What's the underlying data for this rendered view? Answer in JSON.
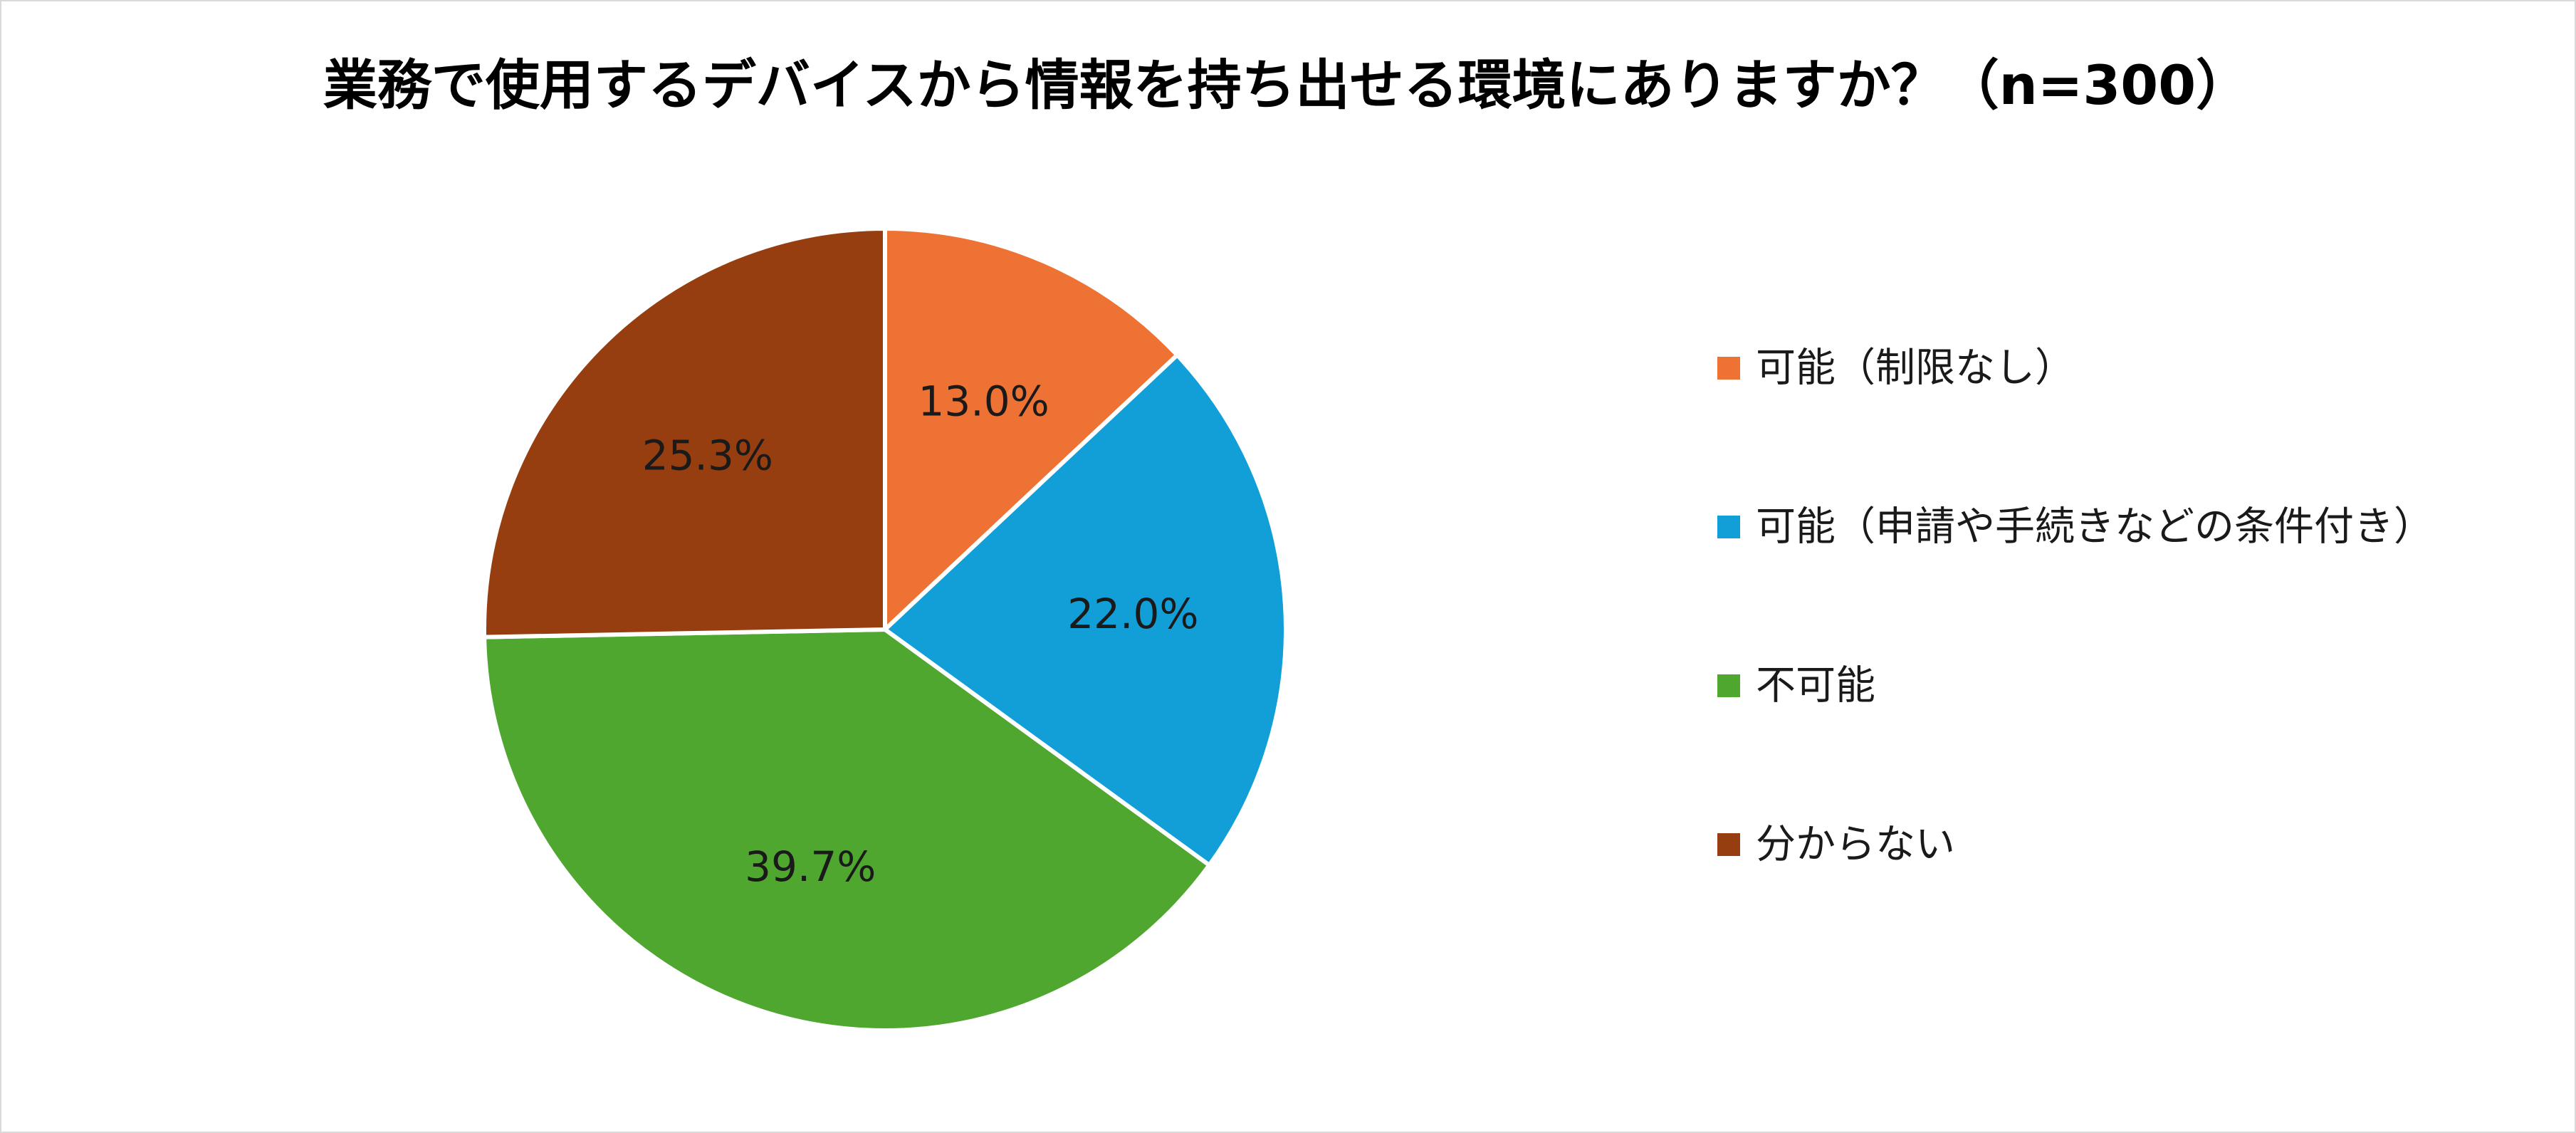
{
  "chart_data": {
    "type": "pie",
    "title": "業務で使用するデバイスから情報を持ち出せる環境にありますか？（n=300）",
    "categories": [
      "可能（制限なし）",
      "可能（申請や手続きなどの条件付き）",
      "不可能",
      "分からない"
    ],
    "values": [
      13.0,
      22.0,
      39.7,
      25.3
    ],
    "labels": [
      "13.0%",
      "22.0%",
      "39.7%",
      "25.3%"
    ],
    "colors": [
      "#ED7234",
      "#129FD8",
      "#4FA730",
      "#973E11"
    ],
    "legend_position": "right",
    "start_angle": "12 o'clock",
    "direction": "clockwise"
  }
}
